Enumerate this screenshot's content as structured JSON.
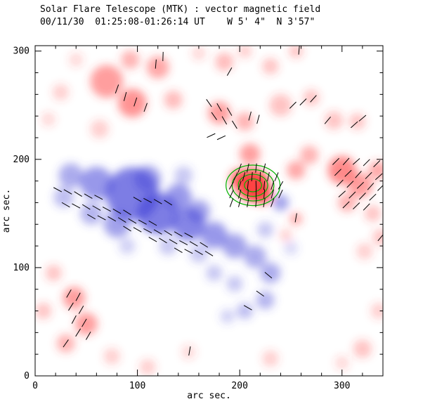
{
  "header": {
    "title": "Solar Flare Telescope (MTK) : vector magnetic field",
    "subtitle": "00/11/30  01:25:08-01:26:14 UT    W 5' 4\"  N 3'57\""
  },
  "chart_data": {
    "type": "heatmap",
    "title": "Solar Flare Telescope (MTK) : vector magnetic field",
    "subtitle": "00/11/30  01:25:08-01:26:14 UT    W 5' 4\"  N 3'57\"",
    "xlabel": "arc sec.",
    "ylabel": "arc sec.",
    "xlim": [
      0,
      340
    ],
    "ylim": [
      0,
      305
    ],
    "xticks": [
      0,
      100,
      200,
      300
    ],
    "yticks": [
      0,
      100,
      200,
      300
    ],
    "minor_tick_step": 20,
    "colors": {
      "positive": "#ff3b3b",
      "negative": "#4646d8",
      "contour": "#00b400",
      "vector": "#000000",
      "frame": "#000000"
    },
    "blob_fields": [
      "x",
      "y",
      "r",
      "intensity"
    ],
    "blobs_pos": [
      [
        70,
        272,
        16,
        0.5
      ],
      [
        95,
        252,
        14,
        0.55
      ],
      [
        120,
        285,
        11,
        0.45
      ],
      [
        93,
        292,
        9,
        0.4
      ],
      [
        135,
        255,
        9,
        0.35
      ],
      [
        25,
        262,
        8,
        0.25
      ],
      [
        13,
        237,
        7,
        0.2
      ],
      [
        63,
        228,
        9,
        0.25
      ],
      [
        40,
        292,
        7,
        0.2
      ],
      [
        185,
        290,
        9,
        0.35
      ],
      [
        230,
        286,
        8,
        0.3
      ],
      [
        255,
        300,
        7,
        0.3
      ],
      [
        205,
        300,
        7,
        0.25
      ],
      [
        160,
        298,
        7,
        0.2
      ],
      [
        180,
        243,
        11,
        0.5
      ],
      [
        205,
        235,
        9,
        0.4
      ],
      [
        240,
        250,
        11,
        0.3
      ],
      [
        270,
        257,
        8,
        0.3
      ],
      [
        292,
        236,
        9,
        0.3
      ],
      [
        315,
        235,
        8,
        0.3
      ],
      [
        210,
        205,
        10,
        0.5
      ],
      [
        213,
        176,
        16,
        0.95
      ],
      [
        222,
        168,
        10,
        0.8
      ],
      [
        200,
        182,
        10,
        0.7
      ],
      [
        255,
        190,
        9,
        0.45
      ],
      [
        268,
        204,
        9,
        0.4
      ],
      [
        300,
        190,
        14,
        0.6
      ],
      [
        318,
        176,
        12,
        0.5
      ],
      [
        335,
        190,
        9,
        0.45
      ],
      [
        305,
        160,
        9,
        0.4
      ],
      [
        330,
        150,
        8,
        0.3
      ],
      [
        338,
        128,
        8,
        0.3
      ],
      [
        322,
        115,
        8,
        0.25
      ],
      [
        255,
        145,
        6,
        0.45
      ],
      [
        245,
        130,
        6,
        0.25
      ],
      [
        38,
        72,
        11,
        0.5
      ],
      [
        50,
        48,
        11,
        0.5
      ],
      [
        30,
        30,
        9,
        0.4
      ],
      [
        18,
        95,
        8,
        0.3
      ],
      [
        8,
        60,
        8,
        0.3
      ],
      [
        75,
        18,
        8,
        0.25
      ],
      [
        110,
        8,
        8,
        0.25
      ],
      [
        150,
        22,
        7,
        0.2
      ],
      [
        230,
        16,
        8,
        0.25
      ],
      [
        320,
        25,
        9,
        0.3
      ],
      [
        336,
        60,
        8,
        0.25
      ],
      [
        300,
        12,
        7,
        0.2
      ]
    ],
    "blobs_neg": [
      [
        95,
        168,
        26,
        0.7
      ],
      [
        60,
        178,
        16,
        0.55
      ],
      [
        35,
        185,
        12,
        0.45
      ],
      [
        28,
        165,
        10,
        0.35
      ],
      [
        120,
        150,
        20,
        0.7
      ],
      [
        150,
        140,
        16,
        0.65
      ],
      [
        175,
        130,
        13,
        0.55
      ],
      [
        195,
        120,
        12,
        0.5
      ],
      [
        215,
        110,
        11,
        0.45
      ],
      [
        230,
        95,
        10,
        0.45
      ],
      [
        225,
        70,
        9,
        0.4
      ],
      [
        205,
        60,
        8,
        0.35
      ],
      [
        188,
        55,
        7,
        0.25
      ],
      [
        240,
        160,
        8,
        0.5
      ],
      [
        225,
        135,
        8,
        0.3
      ],
      [
        80,
        140,
        13,
        0.5
      ],
      [
        55,
        150,
        11,
        0.4
      ],
      [
        140,
        165,
        13,
        0.55
      ],
      [
        160,
        152,
        11,
        0.5
      ],
      [
        110,
        182,
        13,
        0.5
      ],
      [
        145,
        185,
        9,
        0.3
      ],
      [
        130,
        120,
        9,
        0.3
      ],
      [
        160,
        113,
        9,
        0.3
      ],
      [
        90,
        120,
        8,
        0.25
      ],
      [
        175,
        95,
        8,
        0.3
      ],
      [
        195,
        85,
        8,
        0.3
      ],
      [
        250,
        118,
        7,
        0.2
      ]
    ],
    "contours": {
      "cx": 213,
      "cy": 176,
      "levels": [
        7,
        12,
        17,
        22
      ]
    },
    "vector_length": 9,
    "vector_fields": [
      "x",
      "y",
      "angle_deg"
    ],
    "vectors": [
      [
        22,
        172,
        -28
      ],
      [
        32,
        170,
        -30
      ],
      [
        42,
        168,
        -32
      ],
      [
        52,
        166,
        -30
      ],
      [
        62,
        165,
        -28
      ],
      [
        30,
        158,
        -30
      ],
      [
        40,
        157,
        -28
      ],
      [
        50,
        156,
        -32
      ],
      [
        60,
        155,
        -30
      ],
      [
        70,
        154,
        -28
      ],
      [
        80,
        152,
        -30
      ],
      [
        90,
        151,
        -32
      ],
      [
        55,
        147,
        -30
      ],
      [
        65,
        146,
        -28
      ],
      [
        75,
        145,
        -30
      ],
      [
        85,
        144,
        -32
      ],
      [
        95,
        143,
        -30
      ],
      [
        105,
        142,
        -28
      ],
      [
        115,
        141,
        -30
      ],
      [
        90,
        136,
        -32
      ],
      [
        100,
        135,
        -30
      ],
      [
        110,
        134,
        -28
      ],
      [
        120,
        133,
        -30
      ],
      [
        130,
        132,
        -32
      ],
      [
        140,
        131,
        -30
      ],
      [
        150,
        130,
        -28
      ],
      [
        115,
        126,
        -30
      ],
      [
        125,
        125,
        -32
      ],
      [
        135,
        124,
        -30
      ],
      [
        145,
        123,
        -28
      ],
      [
        155,
        122,
        -30
      ],
      [
        165,
        121,
        -32
      ],
      [
        140,
        116,
        -30
      ],
      [
        150,
        115,
        -28
      ],
      [
        160,
        114,
        -30
      ],
      [
        170,
        113,
        -32
      ],
      [
        100,
        163,
        -30
      ],
      [
        110,
        162,
        -28
      ],
      [
        120,
        161,
        -30
      ],
      [
        130,
        160,
        -32
      ],
      [
        192,
        160,
        70
      ],
      [
        200,
        160,
        75
      ],
      [
        208,
        160,
        80
      ],
      [
        216,
        160,
        85
      ],
      [
        224,
        160,
        80
      ],
      [
        232,
        160,
        70
      ],
      [
        192,
        168,
        65
      ],
      [
        200,
        168,
        75
      ],
      [
        208,
        168,
        85
      ],
      [
        216,
        168,
        90
      ],
      [
        224,
        168,
        85
      ],
      [
        232,
        168,
        75
      ],
      [
        240,
        168,
        65
      ],
      [
        192,
        176,
        60
      ],
      [
        200,
        176,
        72
      ],
      [
        208,
        176,
        84
      ],
      [
        216,
        176,
        92
      ],
      [
        224,
        176,
        84
      ],
      [
        232,
        176,
        72
      ],
      [
        240,
        176,
        60
      ],
      [
        196,
        184,
        65
      ],
      [
        204,
        184,
        75
      ],
      [
        212,
        184,
        85
      ],
      [
        220,
        184,
        88
      ],
      [
        228,
        184,
        78
      ],
      [
        236,
        184,
        68
      ],
      [
        200,
        192,
        70
      ],
      [
        208,
        192,
        78
      ],
      [
        216,
        192,
        84
      ],
      [
        224,
        192,
        76
      ],
      [
        294,
        198,
        45
      ],
      [
        304,
        198,
        48
      ],
      [
        314,
        198,
        42
      ],
      [
        324,
        197,
        45
      ],
      [
        334,
        196,
        45
      ],
      [
        296,
        188,
        45
      ],
      [
        306,
        187,
        44
      ],
      [
        316,
        186,
        48
      ],
      [
        326,
        185,
        45
      ],
      [
        336,
        184,
        42
      ],
      [
        298,
        178,
        46
      ],
      [
        308,
        177,
        45
      ],
      [
        318,
        176,
        44
      ],
      [
        328,
        175,
        48
      ],
      [
        338,
        174,
        45
      ],
      [
        300,
        168,
        42
      ],
      [
        310,
        167,
        45
      ],
      [
        320,
        166,
        46
      ],
      [
        330,
        165,
        44
      ],
      [
        304,
        158,
        45
      ],
      [
        314,
        157,
        44
      ],
      [
        324,
        156,
        46
      ],
      [
        170,
        252,
        -55
      ],
      [
        180,
        248,
        -60
      ],
      [
        190,
        244,
        -60
      ],
      [
        175,
        240,
        -55
      ],
      [
        185,
        236,
        -60
      ],
      [
        195,
        232,
        -58
      ],
      [
        210,
        240,
        75
      ],
      [
        218,
        237,
        75
      ],
      [
        172,
        222,
        25
      ],
      [
        182,
        220,
        25
      ],
      [
        88,
        258,
        75
      ],
      [
        98,
        253,
        72
      ],
      [
        80,
        265,
        70
      ],
      [
        108,
        248,
        70
      ],
      [
        118,
        288,
        85
      ],
      [
        33,
        76,
        60
      ],
      [
        42,
        73,
        62
      ],
      [
        35,
        64,
        58
      ],
      [
        45,
        61,
        60
      ],
      [
        38,
        52,
        62
      ],
      [
        48,
        49,
        60
      ],
      [
        42,
        40,
        58
      ],
      [
        52,
        37,
        60
      ],
      [
        30,
        30,
        55
      ],
      [
        125,
        295,
        88
      ],
      [
        190,
        281,
        60
      ],
      [
        258,
        301,
        85
      ],
      [
        252,
        250,
        45
      ],
      [
        262,
        253,
        45
      ],
      [
        272,
        256,
        48
      ],
      [
        286,
        236,
        50
      ],
      [
        312,
        232,
        42
      ],
      [
        320,
        238,
        40
      ],
      [
        255,
        146,
        80
      ],
      [
        228,
        93,
        -40
      ],
      [
        220,
        76,
        -35
      ],
      [
        208,
        63,
        -30
      ],
      [
        151,
        23,
        80
      ],
      [
        338,
        128,
        50
      ]
    ]
  }
}
